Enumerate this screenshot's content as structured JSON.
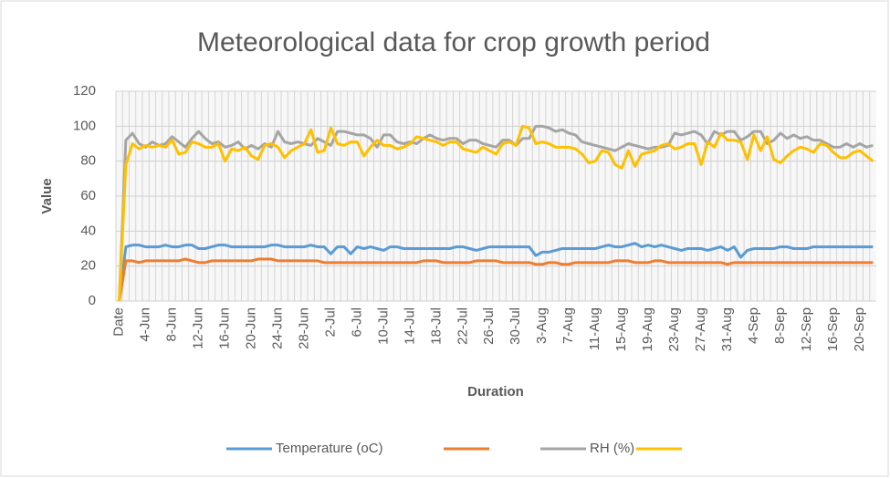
{
  "chart_data": {
    "type": "line",
    "title": "Meteorological data for crop growth period",
    "x_label": "Duration",
    "y_label": "Value",
    "categories": [
      "Date",
      null,
      null,
      null,
      "4-Jun",
      null,
      null,
      null,
      "8-Jun",
      null,
      null,
      null,
      "12-Jun",
      null,
      null,
      null,
      "16-Jun",
      null,
      null,
      null,
      "20-Jun",
      null,
      null,
      null,
      "24-Jun",
      null,
      null,
      null,
      "28-Jun",
      null,
      null,
      null,
      "2-Jul",
      null,
      null,
      null,
      "6-Jul",
      null,
      null,
      null,
      "10-Jul",
      null,
      null,
      null,
      "14-Jul",
      null,
      null,
      null,
      "18-Jul",
      null,
      null,
      null,
      "22-Jul",
      null,
      null,
      null,
      "26-Jul",
      null,
      null,
      null,
      "30-Jul",
      null,
      null,
      null,
      "3-Aug",
      null,
      null,
      null,
      "7-Aug",
      null,
      null,
      null,
      "11-Aug",
      null,
      null,
      null,
      "15-Aug",
      null,
      null,
      null,
      "19-Aug",
      null,
      null,
      null,
      "23-Aug",
      null,
      null,
      null,
      "27-Aug",
      null,
      null,
      null,
      "31-Aug",
      null,
      null,
      null,
      "4-Sep",
      null,
      null,
      null,
      "8-Sep",
      null,
      null,
      null,
      "12-Sep",
      null,
      null,
      null,
      "16-Sep",
      null,
      null,
      null,
      "20-Sep",
      null,
      null
    ],
    "series": [
      {
        "name": "Temperature (oC)",
        "color": "#5b9bd5",
        "values": [
          0,
          31,
          32,
          32,
          31,
          31,
          31,
          32,
          31,
          31,
          32,
          32,
          30,
          30,
          31,
          32,
          32,
          31,
          31,
          31,
          31,
          31,
          31,
          32,
          32,
          31,
          31,
          31,
          31,
          32,
          31,
          31,
          27,
          31,
          31,
          27,
          31,
          30,
          31,
          30,
          29,
          31,
          31,
          30,
          30,
          30,
          30,
          30,
          30,
          30,
          30,
          31,
          31,
          30,
          29,
          30,
          31,
          31,
          31,
          31,
          31,
          31,
          31,
          26,
          28,
          28,
          29,
          30,
          30,
          30,
          30,
          30,
          30,
          31,
          32,
          31,
          31,
          32,
          33,
          31,
          32,
          31,
          32,
          31,
          30,
          29,
          30,
          30,
          30,
          29,
          30,
          31,
          29,
          31,
          25,
          29,
          30,
          30,
          30,
          30,
          31,
          31,
          30,
          30,
          30,
          31,
          31,
          31,
          31,
          31,
          31,
          31,
          31,
          31,
          31
        ]
      },
      {
        "color": "#ed7d31",
        "values": [
          0,
          23,
          23,
          22,
          23,
          23,
          23,
          23,
          23,
          23,
          24,
          23,
          22,
          22,
          23,
          23,
          23,
          23,
          23,
          23,
          23,
          24,
          24,
          24,
          23,
          23,
          23,
          23,
          23,
          23,
          23,
          22,
          22,
          22,
          22,
          22,
          22,
          22,
          22,
          22,
          22,
          22,
          22,
          22,
          22,
          22,
          23,
          23,
          23,
          22,
          22,
          22,
          22,
          22,
          23,
          23,
          23,
          23,
          22,
          22,
          22,
          22,
          22,
          21,
          21,
          22,
          22,
          21,
          21,
          22,
          22,
          22,
          22,
          22,
          22,
          23,
          23,
          23,
          22,
          22,
          22,
          23,
          23,
          22,
          22,
          22,
          22,
          22,
          22,
          22,
          22,
          22,
          21,
          22,
          22,
          22,
          22,
          22,
          22,
          22,
          22,
          22,
          22,
          22,
          22,
          22,
          22,
          22,
          22,
          22,
          22,
          22,
          22,
          22,
          22
        ]
      },
      {
        "name": "RH (%)",
        "color": "#a5a5a5",
        "values": [
          0,
          92,
          96,
          90,
          88,
          91,
          89,
          90,
          94,
          91,
          88,
          93,
          97,
          93,
          90,
          91,
          88,
          89,
          91,
          87,
          89,
          87,
          90,
          88,
          97,
          91,
          90,
          91,
          90,
          89,
          93,
          91,
          89,
          97,
          97,
          96,
          95,
          95,
          93,
          88,
          95,
          95,
          91,
          90,
          91,
          90,
          93,
          95,
          93,
          92,
          93,
          93,
          90,
          92,
          92,
          90,
          89,
          88,
          92,
          92,
          89,
          93,
          93,
          100,
          100,
          99,
          97,
          98,
          96,
          95,
          91,
          90,
          89,
          88,
          87,
          86,
          88,
          90,
          89,
          88,
          87,
          88,
          88,
          89,
          96,
          95,
          96,
          97,
          95,
          90,
          97,
          95,
          97,
          97,
          92,
          94,
          97,
          97,
          90,
          92,
          96,
          93,
          95,
          93,
          94,
          92,
          92,
          90,
          88,
          88,
          90,
          88,
          90,
          88,
          89
        ]
      },
      {
        "color": "#ffc000",
        "values": [
          0,
          78,
          90,
          87,
          89,
          88,
          89,
          88,
          92,
          84,
          85,
          91,
          90,
          88,
          88,
          90,
          80,
          87,
          86,
          88,
          83,
          81,
          89,
          90,
          88,
          82,
          86,
          88,
          90,
          98,
          85,
          86,
          99,
          90,
          89,
          91,
          91,
          83,
          88,
          92,
          89,
          89,
          87,
          88,
          90,
          94,
          93,
          92,
          91,
          89,
          91,
          91,
          87,
          86,
          85,
          88,
          86,
          84,
          90,
          91,
          89,
          100,
          99,
          90,
          91,
          90,
          88,
          88,
          88,
          87,
          84,
          79,
          80,
          86,
          85,
          78,
          76,
          86,
          77,
          84,
          85,
          86,
          89,
          90,
          87,
          88,
          90,
          90,
          78,
          91,
          88,
          96,
          92,
          92,
          91,
          81,
          95,
          86,
          94,
          81,
          79,
          83,
          86,
          88,
          87,
          85,
          90,
          89,
          85,
          82,
          82,
          85,
          86,
          83,
          80
        ]
      }
    ],
    "ylim": [
      0,
      120
    ],
    "yticks": [
      0,
      20,
      40,
      60,
      80,
      100,
      120
    ],
    "grid": true,
    "legend": "bottom"
  }
}
